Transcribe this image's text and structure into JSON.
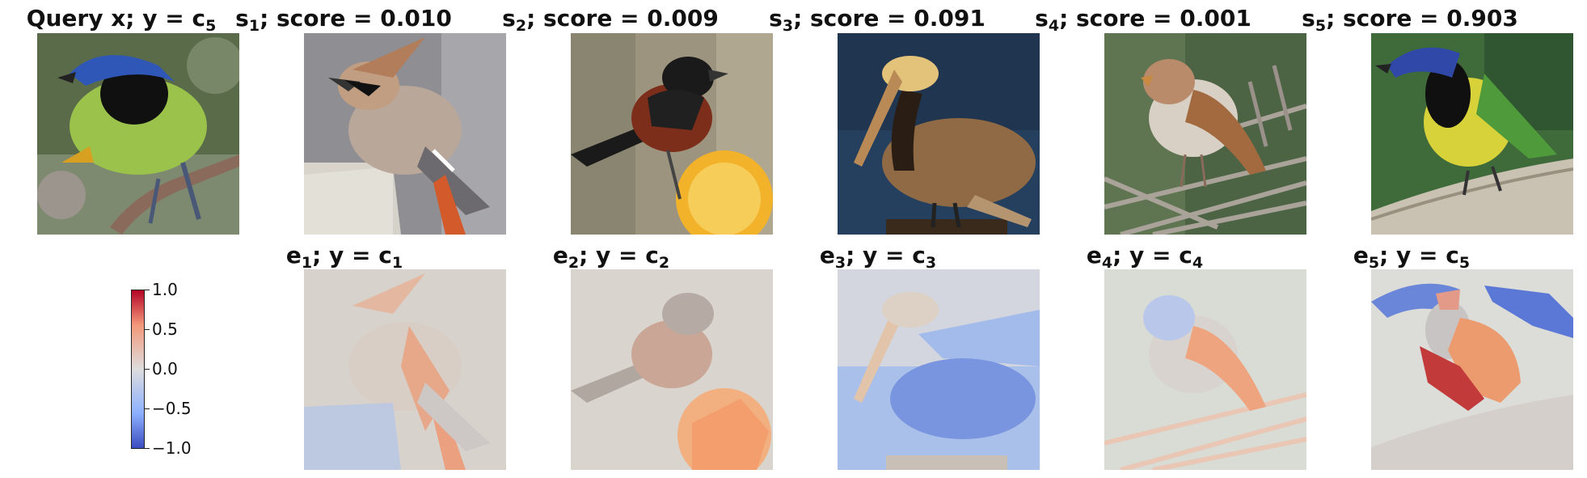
{
  "top_row": [
    {
      "id": "query",
      "lead": "Query x; y",
      "sym": "c",
      "sub": "5",
      "suffix": ""
    },
    {
      "id": "s1",
      "lead": "s",
      "lead_sub": "1",
      "text": "; score = 0.010"
    },
    {
      "id": "s2",
      "lead": "s",
      "lead_sub": "2",
      "text": "; score = 0.009"
    },
    {
      "id": "s3",
      "lead": "s",
      "lead_sub": "3",
      "text": "; score = 0.091"
    },
    {
      "id": "s4",
      "lead": "s",
      "lead_sub": "4",
      "text": "; score = 0.001"
    },
    {
      "id": "s5",
      "lead": "s",
      "lead_sub": "5",
      "text": "; score = 0.903"
    }
  ],
  "bottom_row": [
    {
      "id": "e1",
      "lead": "e",
      "lead_sub": "1",
      "mid": "; y = c",
      "end_sub": "1"
    },
    {
      "id": "e2",
      "lead": "e",
      "lead_sub": "2",
      "mid": "; y = c",
      "end_sub": "2"
    },
    {
      "id": "e3",
      "lead": "e",
      "lead_sub": "3",
      "mid": "; y = c",
      "end_sub": "3"
    },
    {
      "id": "e4",
      "lead": "e",
      "lead_sub": "4",
      "mid": "; y = c",
      "end_sub": "4"
    },
    {
      "id": "e5",
      "lead": "e",
      "lead_sub": "5",
      "mid": "; y = c",
      "end_sub": "5"
    }
  ],
  "colorbar": {
    "ticks": [
      "1.0",
      "0.5",
      "0.0",
      "−0.5",
      "−1.0"
    ],
    "range": [
      -1.0,
      1.0
    ],
    "colormap": "coolwarm",
    "low_color": "#3b4cc0",
    "mid_color": "#dddddd",
    "high_color": "#b40426"
  },
  "images": {
    "query": "green-jay-photo",
    "s1": "waxwing-photo",
    "s2": "oriole-on-orange-photo",
    "s3": "pelican-photo",
    "s4": "sparrow-photo",
    "s5": "green-jay-photo-2"
  }
}
